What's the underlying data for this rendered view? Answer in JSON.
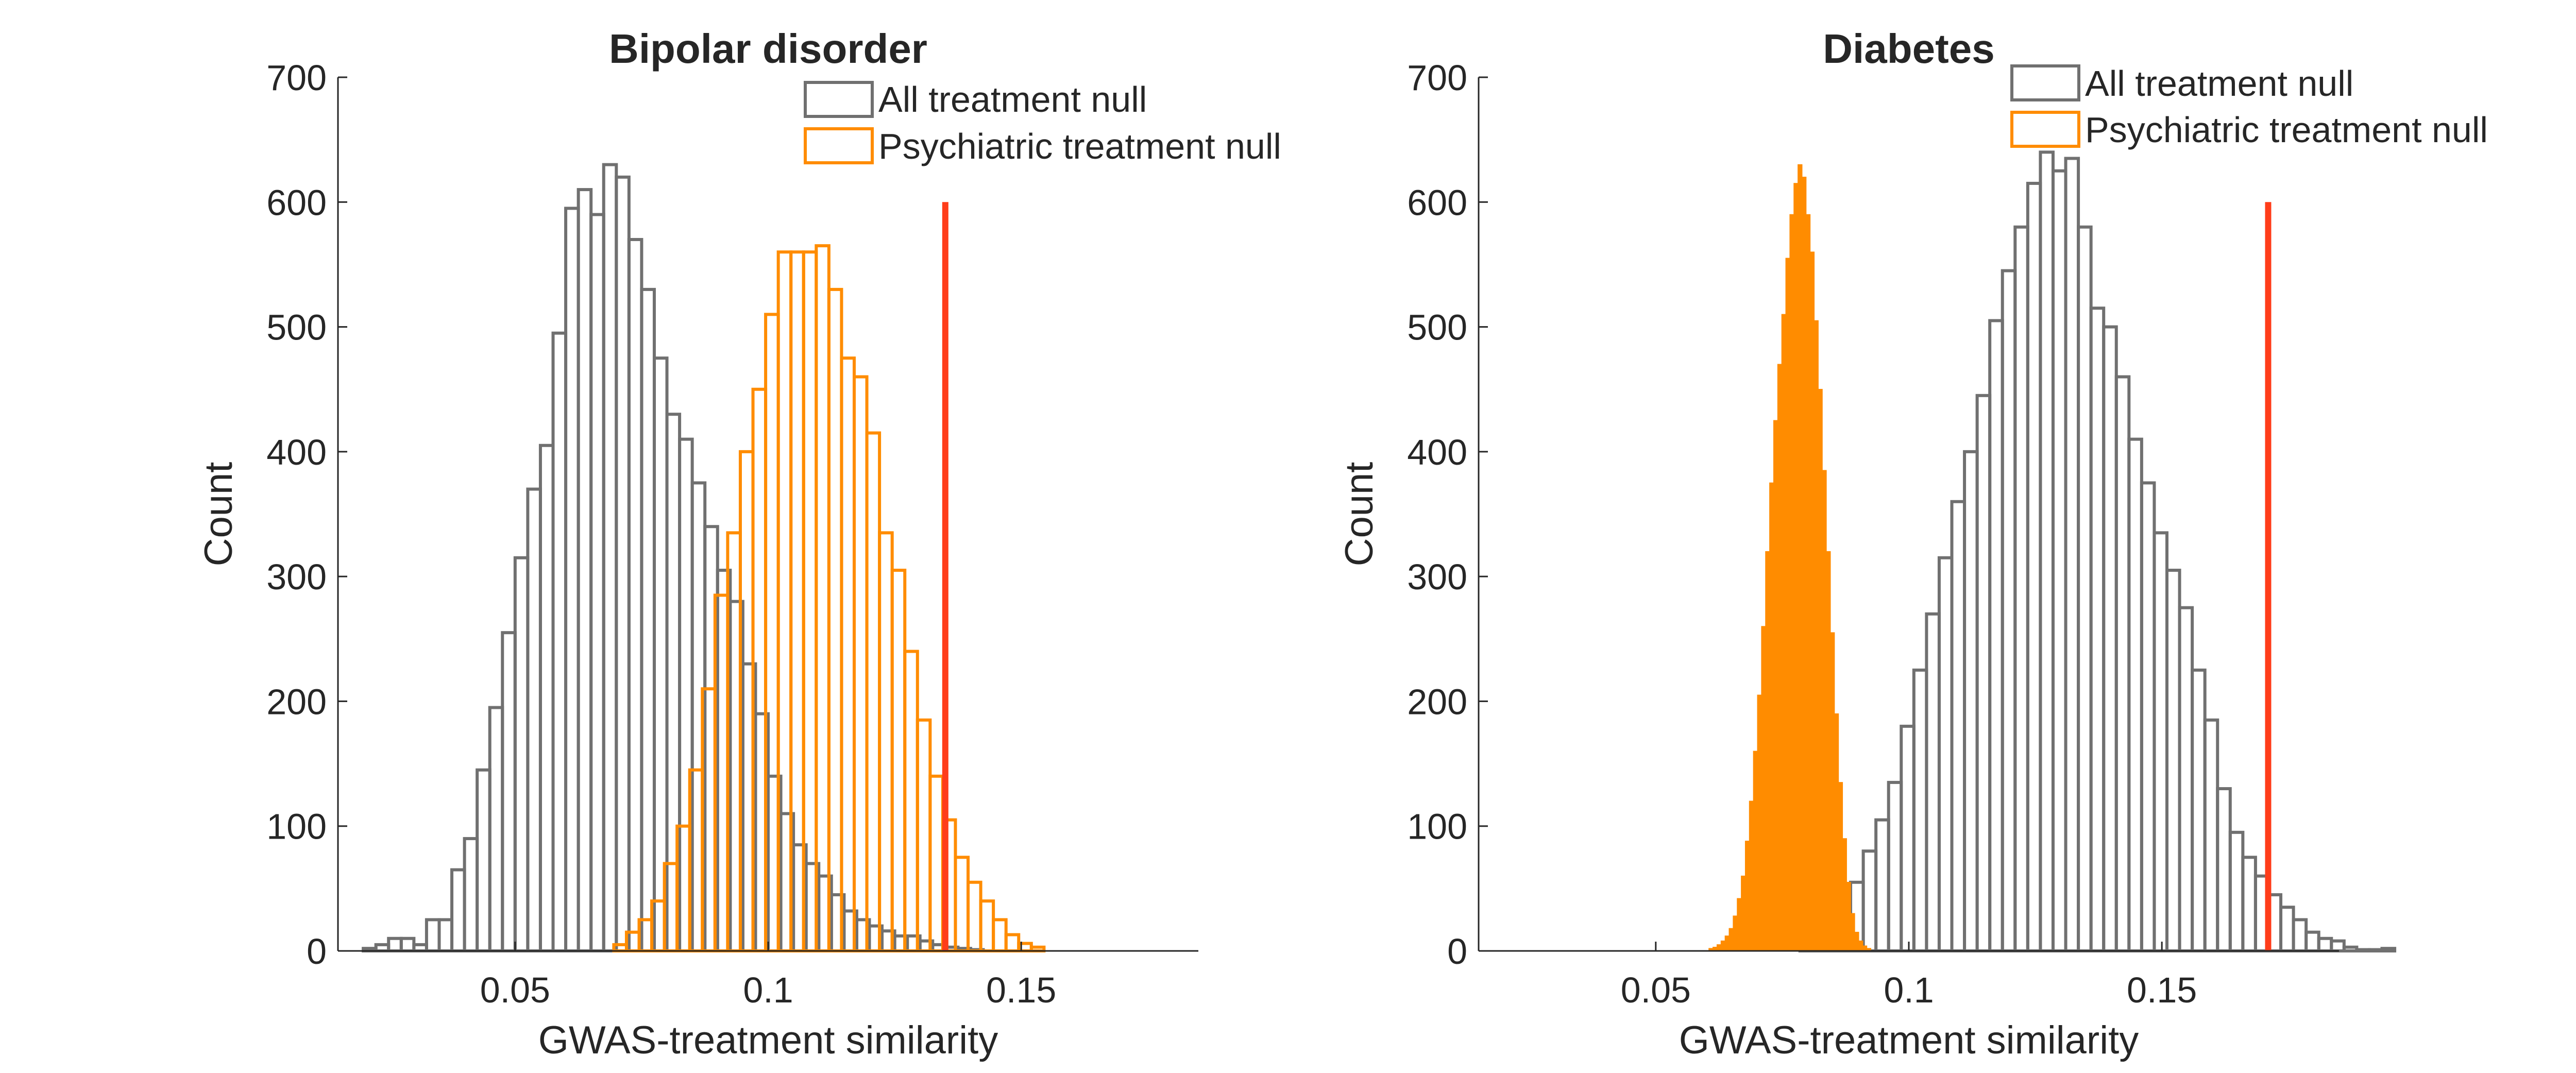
{
  "chart_data": [
    {
      "type": "histogram",
      "title": "Bipolar disorder",
      "xlabel": "GWAS-treatment similarity",
      "ylabel": "Count",
      "xlim": [
        0.015,
        0.185
      ],
      "ylim": [
        0,
        700
      ],
      "xticks": [
        0.05,
        0.1,
        0.15
      ],
      "xtick_labels": [
        "0.05",
        "0.1",
        "0.15"
      ],
      "yticks": [
        0,
        100,
        200,
        300,
        400,
        500,
        600,
        700
      ],
      "ytick_labels": [
        "0",
        "100",
        "200",
        "300",
        "400",
        "500",
        "600",
        "700"
      ],
      "legend_position": "top-right",
      "reference_line": {
        "x": 0.135,
        "y_top": 600,
        "color": "#ff3d1a"
      },
      "series": [
        {
          "name": "All treatment null",
          "color": "#707070",
          "style": "outline",
          "bin_start": 0.02,
          "bin_width": 0.0025,
          "counts": [
            2,
            5,
            10,
            10,
            5,
            25,
            25,
            65,
            90,
            145,
            195,
            255,
            315,
            370,
            405,
            495,
            595,
            610,
            590,
            630,
            620,
            570,
            530,
            475,
            430,
            410,
            375,
            340,
            305,
            280,
            230,
            190,
            140,
            110,
            85,
            70,
            60,
            45,
            32,
            25,
            20,
            16,
            12,
            12,
            8,
            5,
            3,
            2,
            1
          ]
        },
        {
          "name": "Psychiatric treatment null",
          "color": "#ff8c00",
          "style": "outline",
          "bin_start": 0.0695,
          "bin_width": 0.0025,
          "counts": [
            5,
            15,
            25,
            40,
            70,
            100,
            145,
            210,
            285,
            335,
            400,
            450,
            510,
            560,
            560,
            560,
            565,
            530,
            475,
            460,
            415,
            335,
            305,
            240,
            185,
            140,
            105,
            75,
            55,
            40,
            25,
            13,
            6,
            3
          ]
        }
      ]
    },
    {
      "type": "histogram",
      "title": "Diabetes",
      "xlabel": "GWAS-treatment similarity",
      "ylabel": "Count",
      "xlim": [
        0.015,
        0.185
      ],
      "ylim": [
        0,
        700
      ],
      "xticks": [
        0.05,
        0.1,
        0.15
      ],
      "xtick_labels": [
        "0.05",
        "0.1",
        "0.15"
      ],
      "yticks": [
        0,
        100,
        200,
        300,
        400,
        500,
        600,
        700
      ],
      "ytick_labels": [
        "0",
        "100",
        "200",
        "300",
        "400",
        "500",
        "600",
        "700"
      ],
      "legend_position": "top-right",
      "reference_line": {
        "x": 0.171,
        "y_top": 600,
        "color": "#ff3d1a"
      },
      "series": [
        {
          "name": "All treatment null",
          "color": "#707070",
          "style": "outline",
          "bin_start": 0.0785,
          "bin_width": 0.0025,
          "counts": [
            2,
            5,
            12,
            30,
            55,
            80,
            105,
            135,
            180,
            225,
            270,
            315,
            360,
            400,
            445,
            505,
            545,
            580,
            615,
            640,
            625,
            635,
            580,
            515,
            500,
            460,
            410,
            375,
            335,
            305,
            275,
            225,
            185,
            130,
            95,
            75,
            60,
            45,
            35,
            25,
            15,
            10,
            8,
            3,
            1,
            1,
            2
          ]
        },
        {
          "name": "Psychiatric treatment null",
          "color": "#ff8c00",
          "style": "filled",
          "bin_start": 0.0605,
          "bin_width": 0.0008,
          "counts": [
            2,
            3,
            5,
            8,
            12,
            18,
            28,
            42,
            60,
            88,
            120,
            160,
            205,
            260,
            320,
            375,
            425,
            470,
            510,
            555,
            590,
            615,
            630,
            620,
            590,
            560,
            505,
            450,
            385,
            320,
            255,
            190,
            135,
            90,
            55,
            30,
            15,
            8,
            4,
            2
          ]
        }
      ]
    }
  ]
}
